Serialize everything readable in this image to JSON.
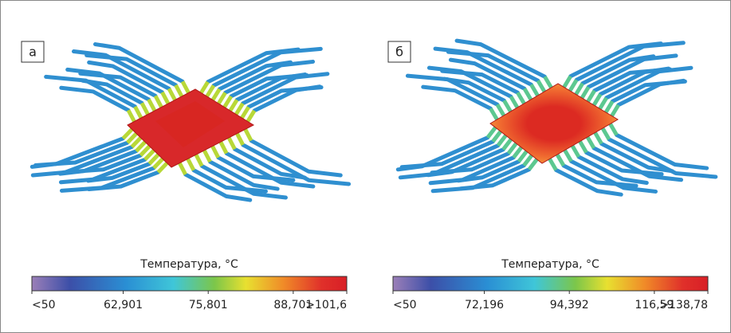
{
  "panels": [
    {
      "label": "а",
      "colorbar": {
        "title": "Температура, °C",
        "ticks": [
          "<50",
          "62,901",
          "75,801",
          "88,701",
          ">101,6"
        ]
      }
    },
    {
      "label": "б",
      "colorbar": {
        "title": "Температура, °C",
        "ticks": [
          "<50",
          "72,196",
          "94,392",
          "116,59",
          ">138,78"
        ]
      }
    }
  ]
}
